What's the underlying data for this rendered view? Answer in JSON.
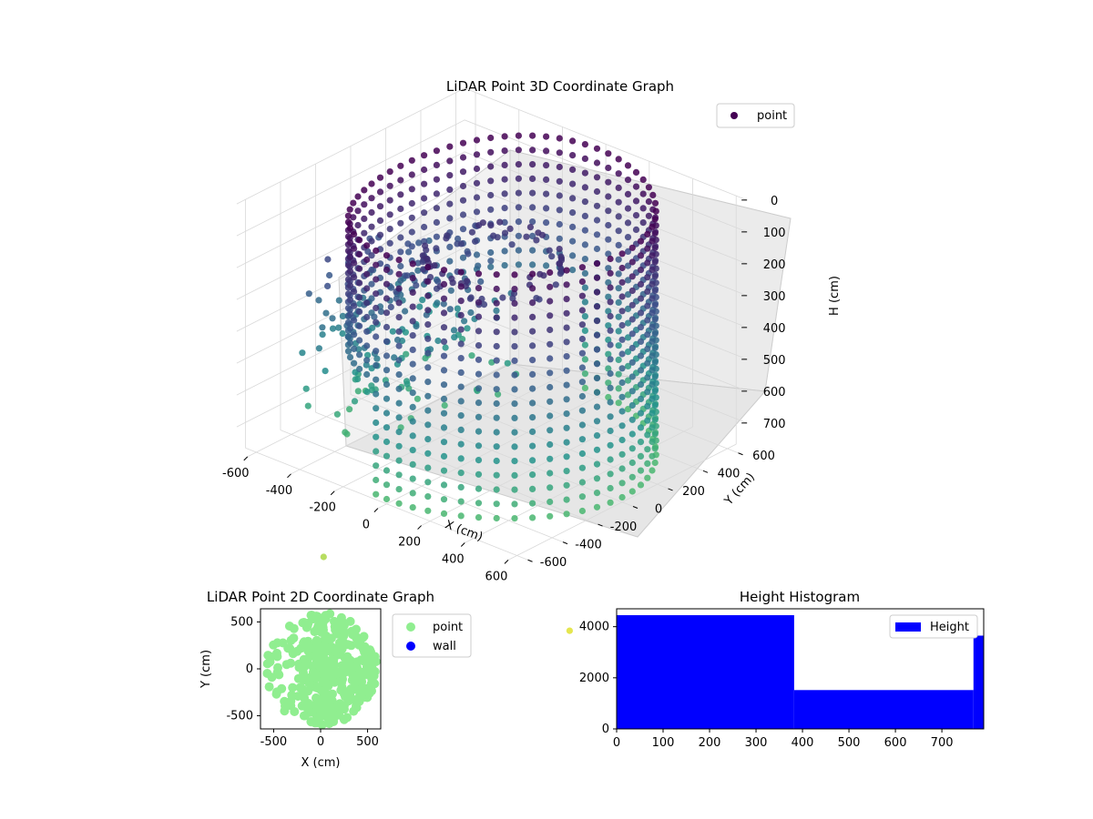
{
  "chart_data": [
    {
      "type": "scatter",
      "title": "LiDAR Point 3D Coordinate Graph",
      "xlabel": "X (cm)",
      "ylabel": "Y (cm)",
      "zlabel": "H (cm)",
      "xlim": [
        -650,
        650
      ],
      "ylim": [
        -650,
        650
      ],
      "zlim": [
        0,
        780
      ],
      "z_inverted": true,
      "xticks": [
        -600,
        -400,
        -200,
        0,
        200,
        400,
        600
      ],
      "yticks": [
        -600,
        -400,
        -200,
        0,
        200,
        400,
        600
      ],
      "zticks": [
        0,
        100,
        200,
        300,
        400,
        500,
        600,
        700
      ],
      "legend": [
        "point"
      ],
      "legend_position": "top-right",
      "grid": true,
      "colormap": "viridis",
      "series": [
        {
          "name": "point",
          "structure": "cylindrical wall of points, radius ~600 cm, centred near x=0,y=0, heights 0–780 cm, plus scattered clutter near x=-500",
          "ring_radius": 600,
          "height_range": [
            0,
            780
          ],
          "outliers": [
            {
              "x": -250,
              "y": -650,
              "h": 1000
            },
            {
              "x": 600,
              "y": -300,
              "h": 1100
            }
          ]
        }
      ]
    },
    {
      "type": "scatter",
      "title": "LiDAR Point 2D Coordinate Graph",
      "xlabel": "X (cm)",
      "ylabel": "Y (cm)",
      "xlim": [
        -640,
        640
      ],
      "ylim": [
        -640,
        640
      ],
      "xticks": [
        -500,
        0,
        500
      ],
      "yticks": [
        -500,
        0,
        500
      ],
      "legend": [
        "point",
        "wall"
      ],
      "legend_position": "outside-right",
      "series": [
        {
          "name": "point",
          "color": "#90ee90",
          "structure": "filled disk radius ~600 cm with sparse left region"
        },
        {
          "name": "wall",
          "color": "#0000ff",
          "points": []
        }
      ]
    },
    {
      "type": "bar",
      "title": "Height Histogram",
      "xlabel": "",
      "ylabel": "",
      "xlim": [
        0,
        790
      ],
      "ylim": [
        0,
        4700
      ],
      "xticks": [
        0,
        100,
        200,
        300,
        400,
        500,
        600,
        700
      ],
      "yticks": [
        0,
        2000,
        4000
      ],
      "legend": [
        "Height"
      ],
      "legend_position": "top-right",
      "color": "#0000ff",
      "bins": [
        {
          "start": 0,
          "end": 382,
          "count": 4450
        },
        {
          "start": 382,
          "end": 768,
          "count": 1520
        },
        {
          "start": 768,
          "end": 790,
          "count": 3650
        }
      ]
    }
  ]
}
